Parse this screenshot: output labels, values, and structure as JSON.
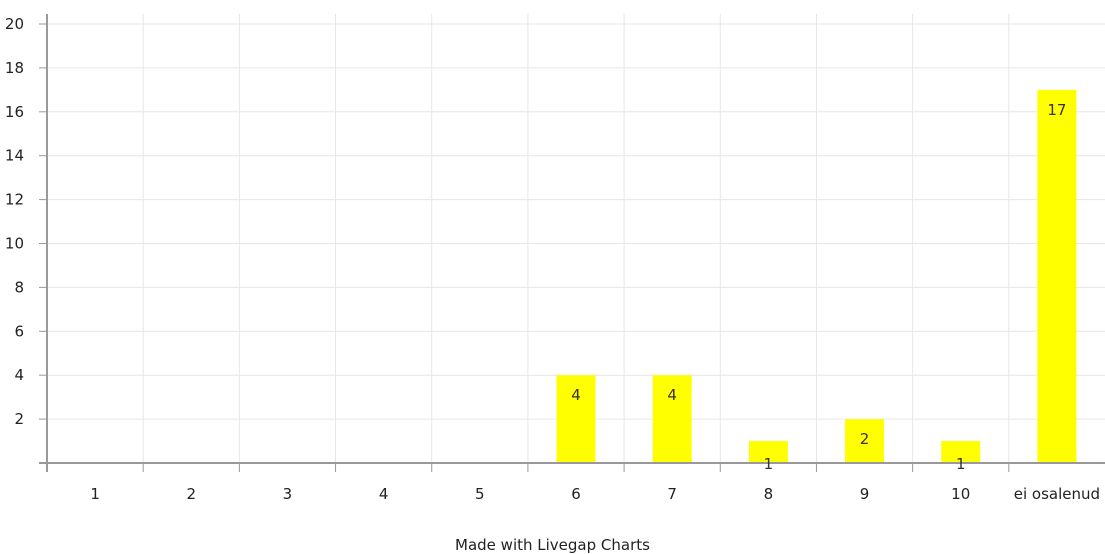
{
  "chart_data": {
    "type": "bar",
    "categories": [
      "1",
      "2",
      "3",
      "4",
      "5",
      "6",
      "7",
      "8",
      "9",
      "10",
      "ei osalenud"
    ],
    "values": [
      0,
      0,
      0,
      0,
      0,
      4,
      4,
      1,
      2,
      1,
      17
    ],
    "data_labels": [
      "",
      "",
      "",
      "",
      "",
      "4",
      "4",
      "1",
      "2",
      "1",
      "17"
    ],
    "y_ticks": [
      "2",
      "4",
      "6",
      "8",
      "10",
      "12",
      "14",
      "16",
      "18",
      "20"
    ],
    "ylim": [
      0,
      20
    ],
    "grid": true,
    "legend": "none",
    "title": "",
    "xlabel": "",
    "ylabel": "",
    "colors": {
      "bar": "#ffff00",
      "grid": "#e6e6e6",
      "axis": "#999999"
    }
  },
  "footer": {
    "credit": "Made with Livegap Charts"
  }
}
